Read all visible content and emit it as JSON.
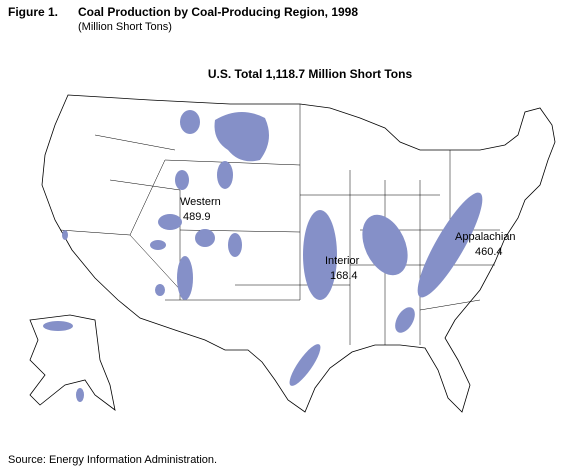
{
  "figure": {
    "label": "Figure 1.",
    "title": "Coal Production by Coal-Producing Region, 1998",
    "subtitle": "(Million Short Tons)"
  },
  "map": {
    "total": "U.S. Total 1,118.7 Million Short Tons",
    "regions": [
      {
        "name": "Western",
        "value": "489.9"
      },
      {
        "name": "Interior",
        "value": "168.4"
      },
      {
        "name": "Appalachian",
        "value": "460.4"
      }
    ]
  },
  "source": "Source:  Energy Information Administration."
}
